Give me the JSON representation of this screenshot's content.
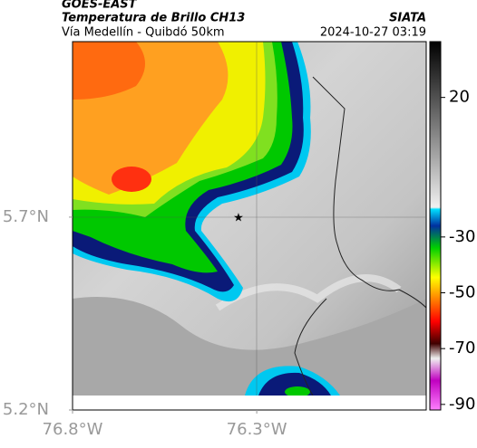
{
  "header": {
    "satellite": "GOES-EAST",
    "product": "Temperatura de Brillo CH13",
    "region": "Vía Medellín - Quibdó 50km",
    "source": "SIATA",
    "datetime": "2024-10-27 03:19"
  },
  "map": {
    "xlim": [
      -76.8,
      -75.84
    ],
    "ylim": [
      5.2,
      6.155
    ],
    "xticks": [
      {
        "value": -76.8,
        "label": "76.8°W"
      },
      {
        "value": -76.3,
        "label": "76.3°W"
      }
    ],
    "yticks": [
      {
        "value": 5.7,
        "label": "5.7°N"
      },
      {
        "value": 5.2,
        "label": "5.2°N"
      }
    ]
  },
  "colorbar": {
    "clim": [
      -92,
      40
    ],
    "ticks": [
      20,
      -30,
      -50,
      -70,
      -90
    ]
  }
}
